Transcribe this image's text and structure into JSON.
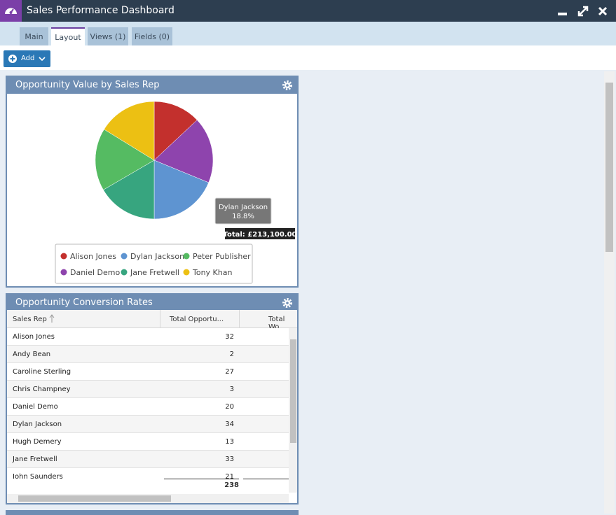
{
  "window": {
    "title": "Sales Performance Dashboard"
  },
  "tabs": [
    "Main",
    "Layout",
    "Views (1)",
    "Fields (0)"
  ],
  "active_tab": 1,
  "toolbar": {
    "add_button": "Add"
  },
  "chart_data": {
    "type": "pie",
    "title": "Opportunity Value by Sales Rep",
    "categories": [
      "Alison Jones",
      "Daniel Demo",
      "Dylan Jackson",
      "Jane Fretwell",
      "Peter Publisher",
      "Tony Khan"
    ],
    "values": [
      13,
      18.2,
      18.8,
      16.6,
      17.2,
      16.2
    ],
    "value_labels": [
      null,
      null,
      "18.8%",
      null,
      null,
      null
    ],
    "colors": [
      "#c3302d",
      "#8e44ad",
      "#5e94d1",
      "#37a57f",
      "#55bb62",
      "#ecc013"
    ],
    "total": "Total: £213,100.00",
    "legend": "bottom"
  },
  "table": {
    "title": "Opportunity Conversion Rates",
    "columns": [
      "Sales Rep",
      "Total Opportu...",
      "Total Wo"
    ],
    "rows": [
      [
        "Alison Jones",
        32
      ],
      [
        "Andy Bean",
        2
      ],
      [
        "Caroline Sterling",
        27
      ],
      [
        "Chris Champney",
        3
      ],
      [
        "Daniel Demo",
        20
      ],
      [
        "Dylan Jackson",
        34
      ],
      [
        "Hugh Demery",
        13
      ],
      [
        "Jane Fretwell",
        33
      ],
      [
        "John Saunders",
        21
      ]
    ],
    "total": 238
  }
}
